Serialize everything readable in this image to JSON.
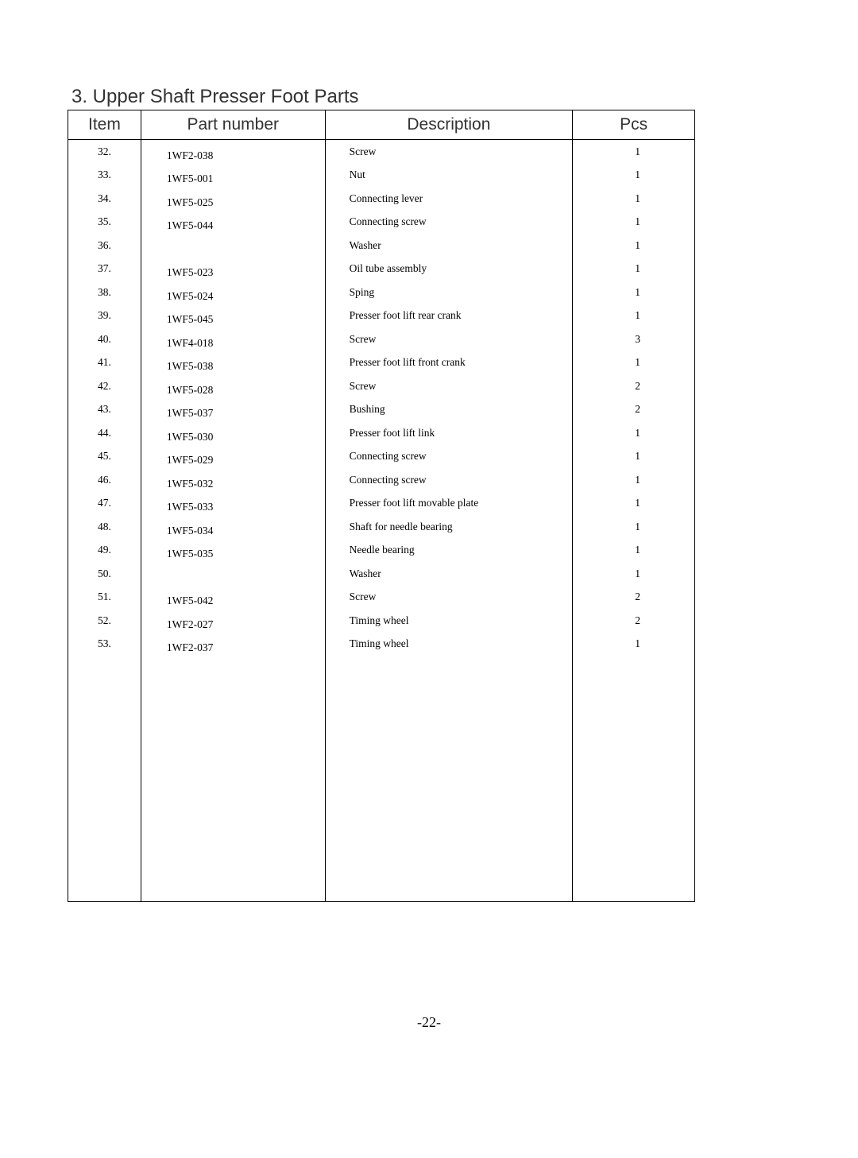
{
  "title": "3. Upper Shaft Presser Foot Parts",
  "headers": {
    "item": "Item",
    "part": "Part number",
    "desc": "Description",
    "pcs": "Pcs"
  },
  "rows": [
    {
      "item": "32.",
      "part": "1WF2-038",
      "desc": "Screw",
      "pcs": "1"
    },
    {
      "item": "33.",
      "part": "1WF5-001",
      "desc": "Nut",
      "pcs": "1"
    },
    {
      "item": "34.",
      "part": "1WF5-025",
      "desc": "Connecting lever",
      "pcs": "1"
    },
    {
      "item": "35.",
      "part": "1WF5-044",
      "desc": "Connecting screw",
      "pcs": "1"
    },
    {
      "item": "36.",
      "part": "",
      "desc": "Washer",
      "pcs": "1"
    },
    {
      "item": "37.",
      "part": "1WF5-023",
      "desc": "Oil tube assembly",
      "pcs": "1"
    },
    {
      "item": "38.",
      "part": "1WF5-024",
      "desc": "Sping",
      "pcs": "1"
    },
    {
      "item": "39.",
      "part": "1WF5-045",
      "desc": "Presser foot lift rear crank",
      "pcs": "1"
    },
    {
      "item": "40.",
      "part": "1WF4-018",
      "desc": "Screw",
      "pcs": "3"
    },
    {
      "item": "41.",
      "part": "1WF5-038",
      "desc": "Presser foot lift front crank",
      "pcs": "1"
    },
    {
      "item": "42.",
      "part": "1WF5-028",
      "desc": "Screw",
      "pcs": "2"
    },
    {
      "item": "43.",
      "part": "1WF5-037",
      "desc": "Bushing",
      "pcs": "2"
    },
    {
      "item": "44.",
      "part": "1WF5-030",
      "desc": "Presser foot lift link",
      "pcs": "1"
    },
    {
      "item": "45.",
      "part": "1WF5-029",
      "desc": "Connecting screw",
      "pcs": "1"
    },
    {
      "item": "46.",
      "part": "1WF5-032",
      "desc": "Connecting screw",
      "pcs": "1"
    },
    {
      "item": "47.",
      "part": "1WF5-033",
      "desc": "Presser foot lift movable plate",
      "pcs": "1"
    },
    {
      "item": "48.",
      "part": "1WF5-034",
      "desc": "Shaft for needle bearing",
      "pcs": "1"
    },
    {
      "item": "49.",
      "part": "1WF5-035",
      "desc": "Needle bearing",
      "pcs": "1"
    },
    {
      "item": "50.",
      "part": "",
      "desc": "Washer",
      "pcs": "1"
    },
    {
      "item": "51.",
      "part": "1WF5-042",
      "desc": "Screw",
      "pcs": "2"
    },
    {
      "item": "52.",
      "part": "1WF2-027",
      "desc": "Timing wheel",
      "pcs": "2"
    },
    {
      "item": "53.",
      "part": "1WF2-037",
      "desc": "Timing wheel",
      "pcs": "1"
    }
  ],
  "pageNumber": "-22-"
}
